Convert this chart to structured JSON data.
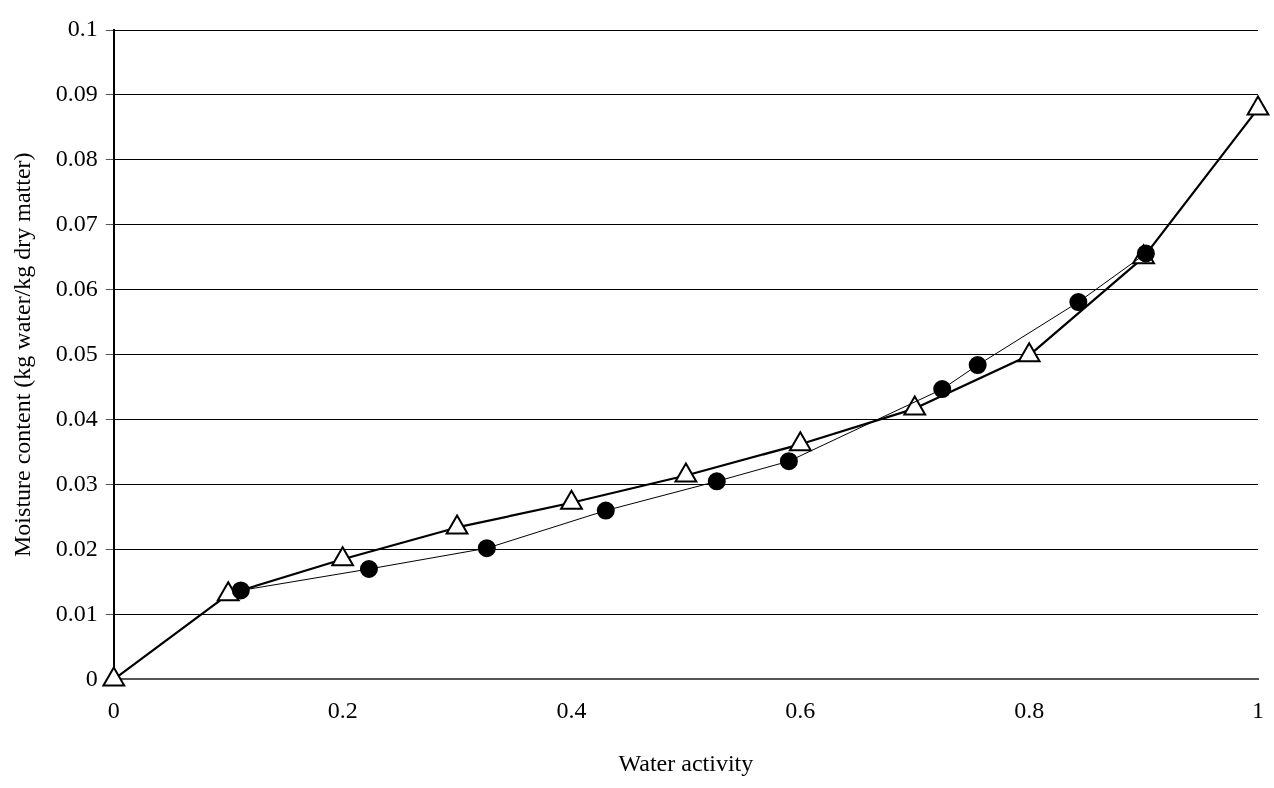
{
  "chart_data": {
    "type": "line",
    "xlabel": "Water activity",
    "ylabel": "Moisture content (kg water/kg dry matter)",
    "xlim": [
      0,
      1
    ],
    "xticks": [
      0,
      0.2,
      0.4,
      0.6,
      0.8,
      1
    ],
    "ylim": [
      0,
      0.1
    ],
    "yticks": [
      0,
      0.01,
      0.02,
      0.03,
      0.04,
      0.05,
      0.06,
      0.07,
      0.08,
      0.09,
      0.1
    ],
    "grid": "y",
    "legend": false,
    "series": [
      {
        "color": "#000000",
        "marker": "triangle",
        "x": [
          0,
          0.1,
          0.2,
          0.3,
          0.4,
          0.5,
          0.6,
          0.7,
          0.8,
          0.9,
          1
        ],
        "values": [
          0,
          0.0131,
          0.0185,
          0.0234,
          0.0272,
          0.0314,
          0.0362,
          0.0417,
          0.0499,
          0.065,
          0.0879
        ]
      },
      {
        "color": "#000000",
        "marker": "circle",
        "x": [
          0.111,
          0.223,
          0.326,
          0.43,
          0.527,
          0.59,
          0.724,
          0.755,
          0.843,
          0.902
        ],
        "values": [
          0.0137,
          0.017,
          0.0202,
          0.026,
          0.0305,
          0.0336,
          0.0447,
          0.0484,
          0.0581,
          0.0656
        ]
      }
    ]
  }
}
